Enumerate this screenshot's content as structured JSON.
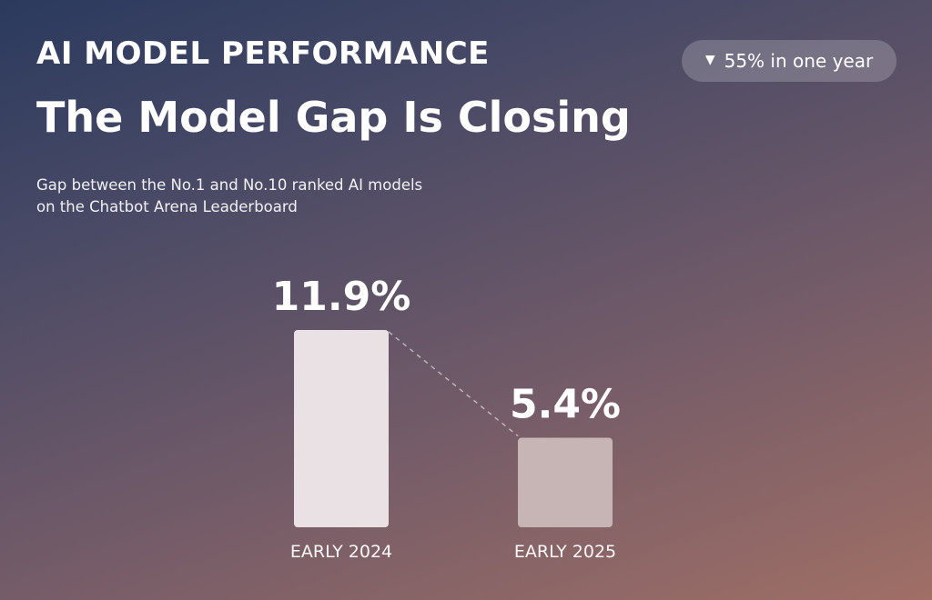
{
  "header": {
    "eyebrow": "AI MODEL PERFORMANCE",
    "title": "The Model Gap Is Closing",
    "subtitle_line1": "Gap between the No.1 and No.10 ranked AI models",
    "subtitle_line2": "on the Chatbot Arena Leaderboard"
  },
  "badge": {
    "arrow_icon": "triangle-down-icon",
    "text": "55% in one year"
  },
  "chart_data": {
    "type": "bar",
    "categories": [
      "EARLY 2024",
      "EARLY 2025"
    ],
    "values": [
      11.9,
      5.4
    ],
    "value_labels": [
      "11.9%",
      "5.4%"
    ],
    "unit": "%",
    "ylim": [
      0,
      11.9
    ],
    "grid": false,
    "connector": "dashed line between bar tops",
    "bar_colors": [
      "#e9e1e3",
      "#c7b4b4"
    ]
  }
}
